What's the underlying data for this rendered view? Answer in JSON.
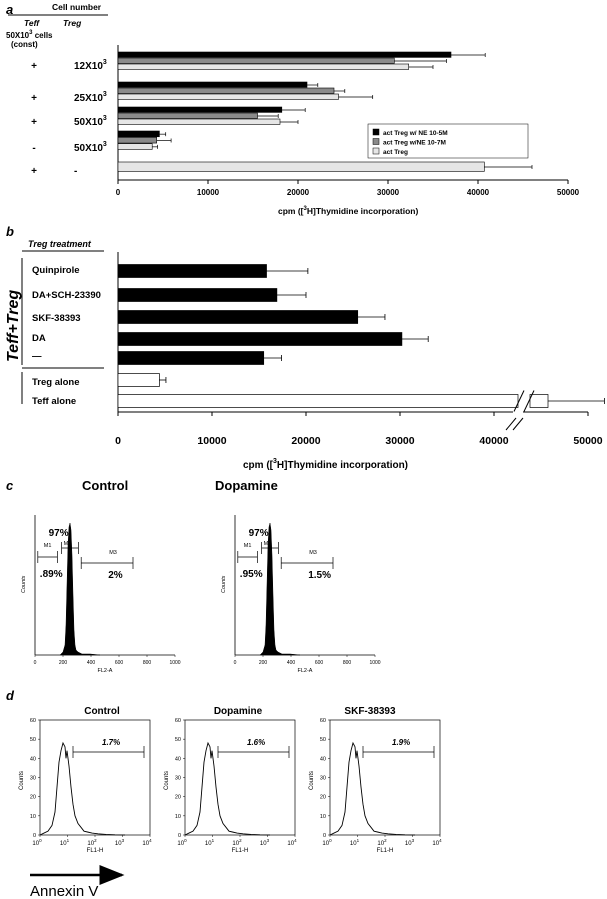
{
  "panel_a": {
    "letter": "a",
    "header_cell_number": "Cell number",
    "header_teff": "Teff",
    "header_treg": "Treg",
    "teff_const_line1": "50X10",
    "teff_const_sup": "3",
    "teff_const_line2": " cells",
    "teff_const_line3": "(const)",
    "rows": [
      {
        "teff": "+",
        "treg_base": "12X10",
        "treg_sup": "3"
      },
      {
        "teff": "+",
        "treg_base": "25X10",
        "treg_sup": "3"
      },
      {
        "teff": "+",
        "treg_base": "50X10",
        "treg_sup": "3"
      },
      {
        "teff": "-",
        "treg_base": "50X10",
        "treg_sup": "3"
      },
      {
        "teff": "+",
        "treg_base": "-",
        "treg_sup": ""
      }
    ],
    "xlabel_pre": "cpm ([",
    "xlabel_sup": "3",
    "xlabel_post": "H]Thymidine incorporation)"
  },
  "panel_b": {
    "letter": "b",
    "treatment_header": "Treg treatment",
    "group_label": "Teff+Treg",
    "rows": [
      "Quinpirole",
      "DA+SCH-23390",
      "SKF-38393",
      "DA",
      "—",
      "Treg alone",
      "Teff alone"
    ],
    "xlabel_pre": "cpm ([",
    "xlabel_sup": "3",
    "xlabel_post": "H]Thymidine incorporation)"
  },
  "panel_c": {
    "letter": "c",
    "plots": [
      {
        "title": "Control",
        "m1_pct": ".89%",
        "m2_pct": "97%",
        "m3_pct": "2%",
        "m1": "M1",
        "m2": "M2",
        "m3": "M3"
      },
      {
        "title": "Dopamine",
        "m1_pct": ".95%",
        "m2_pct": "97%",
        "m3_pct": "1.5%",
        "m1": "M\n1",
        "m2": "M2",
        "m3": "M3"
      }
    ],
    "ylabel": "Counts",
    "xlabel": "FL2-A",
    "xticks": [
      "0",
      "200",
      "400",
      "600",
      "800",
      "1000"
    ]
  },
  "panel_d": {
    "letter": "d",
    "plots": [
      {
        "title": "Control",
        "pct": "1.7%"
      },
      {
        "title": "Dopamine",
        "pct": "1.6%"
      },
      {
        "title": "SKF-38393",
        "pct": "1.9%"
      }
    ],
    "ylabel": "Counts",
    "xlabel": "FL1-H",
    "yticks": [
      "0",
      "10",
      "20",
      "30",
      "40",
      "50",
      "60"
    ],
    "xtick_base": "10",
    "xtick_exps": [
      "0",
      "1",
      "2",
      "3",
      "4"
    ],
    "annexin_label": "Annexin V"
  },
  "chart_data": [
    {
      "type": "bar",
      "categories": [
        "12X10^3",
        "25X10^3",
        "50X10^3",
        "50X10^3 (Teff -)",
        "- (Treg)"
      ],
      "series": [
        {
          "name": "act Treg w/ NE 10-5M",
          "color": "#000000",
          "values": [
            37000,
            21000,
            18200,
            4600,
            null
          ],
          "errors": [
            3800,
            1200,
            2600,
            700,
            null
          ]
        },
        {
          "name": "act Treg w/NE 10-7M",
          "color": "#8a8a8a",
          "values": [
            30700,
            24000,
            15500,
            4300,
            null
          ],
          "errors": [
            5800,
            1200,
            2300,
            1600,
            null
          ]
        },
        {
          "name": "act Treg",
          "color": "#e6e6e6",
          "values": [
            32300,
            24500,
            18000,
            3800,
            40700
          ],
          "errors": [
            2700,
            3800,
            2000,
            600,
            5300
          ]
        }
      ],
      "xlim": [
        0,
        50000
      ],
      "xticks": [
        0,
        10000,
        20000,
        30000,
        40000,
        50000
      ],
      "xlabel": "cpm ([3H]Thymidine incorporation)",
      "legend": "bottom-right"
    },
    {
      "type": "bar",
      "categories": [
        "Quinpirole",
        "DA+SCH-23390",
        "SKF-38393",
        "DA",
        "—",
        "Treg alone",
        "Teff alone"
      ],
      "values": [
        15800,
        16900,
        25500,
        30200,
        15500,
        4400,
        61000
      ],
      "errors": [
        4400,
        3100,
        2900,
        2800,
        1900,
        700,
        6000
      ],
      "colors": [
        "#000000",
        "#000000",
        "#000000",
        "#000000",
        "#000000",
        "#ffffff",
        "#ffffff"
      ],
      "xlim": [
        0,
        50000
      ],
      "xticks": [
        0,
        10000,
        20000,
        30000,
        40000,
        50000
      ],
      "axis_break": true,
      "xlabel": "cpm ([3H]Thymidine incorporation)"
    },
    {
      "type": "histogram",
      "title": "Control",
      "xlim": [
        0,
        1000
      ],
      "gates": {
        "M1": ".89%",
        "M2": "97%",
        "M3": "2%"
      }
    },
    {
      "type": "histogram",
      "title": "Dopamine",
      "xlim": [
        0,
        1000
      ],
      "gates": {
        "M1": ".95%",
        "M2": "97%",
        "M3": "1.5%"
      }
    },
    {
      "type": "histogram",
      "title": "Control",
      "ylim": [
        0,
        60
      ],
      "xscale": "log",
      "gate_pct": "1.7%"
    },
    {
      "type": "histogram",
      "title": "Dopamine",
      "ylim": [
        0,
        60
      ],
      "xscale": "log",
      "gate_pct": "1.6%"
    },
    {
      "type": "histogram",
      "title": "SKF-38393",
      "ylim": [
        0,
        60
      ],
      "xscale": "log",
      "gate_pct": "1.9%"
    }
  ]
}
